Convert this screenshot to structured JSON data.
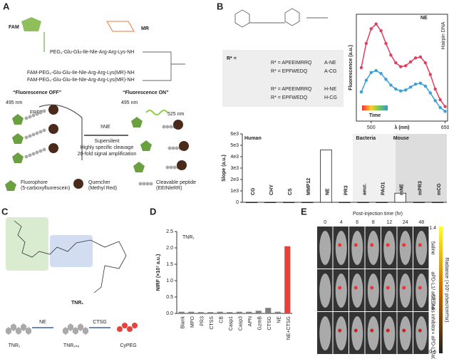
{
  "panels": {
    "a": {
      "label": "A",
      "fam": "FAM",
      "mr": "MR",
      "peptides": [
        "PEG₂-Glu-Glu-Ile-Nle-Arg-Arg-Lys-NH",
        "FAM-PEG₂-Glu-Glu-Ile-Nle-Arg-Arg-Lys(MR)-NH",
        "FAM-PEG₂-Glu-Glu-Ile-Nle-Arg-Arg-Lys(MR)-NH"
      ],
      "off": "“Fluorescence OFF”",
      "on": "“Fluorescence ON”",
      "ex1": "495 nm",
      "fret": "FRET",
      "enzyme": "hNE",
      "ex2": "495 nm",
      "em": "525 nm",
      "notes": [
        "Supersilent",
        "Highly specific cleavage",
        "20-fold signal amplification"
      ],
      "legend": [
        {
          "name": "Fluorophore",
          "detail": "(5-carboxyfluorescein)"
        },
        {
          "name": "Quencher",
          "detail": "(Methyl Red)"
        },
        {
          "name": "Cleavable peptide",
          "detail": "(EEINleRR)"
        }
      ]
    },
    "b": {
      "label": "B",
      "r_label": "R* =",
      "probes": [
        {
          "seq": "R* = APEEIMRRQ",
          "name": "A-NE"
        },
        {
          "seq": "R* = EPFWEDQ",
          "name": "A-CG"
        },
        {
          "seq": "R* = APEEIMRRQ",
          "name": "H-NE"
        },
        {
          "seq": "R* = EPFWEDQ",
          "name": "H-CG"
        }
      ],
      "annotations": [
        "NE",
        "Hairpin DNA"
      ],
      "colorbar": "Time"
    },
    "c": {
      "label": "C",
      "name": "TNR₁",
      "steps": [
        "TNR₁",
        "NE",
        "TNR₁ₙₑ",
        "CTSG",
        "CyPEG"
      ]
    },
    "d": {
      "label": "D"
    },
    "e": {
      "label": "E",
      "title": "Post-injection time (hr)",
      "times": [
        "0",
        "4",
        "6",
        "8",
        "12",
        "24",
        "48"
      ],
      "rows": [
        "Saline",
        "aPD-L1/ aCTLA4",
        "NETosis inhibitor+ aPD-L1/aCTLA4"
      ],
      "colorbar": {
        "title": "Radiance (×10⁵ p/sec/cm²/sr)",
        "max": "1.4",
        "min": "0.6"
      }
    }
  },
  "chart_data": [
    {
      "type": "line",
      "ylabel": "Fluorescence (a.u.)",
      "xlabel": "λ (nm)",
      "x": [
        480,
        490,
        500,
        510,
        520,
        530,
        540,
        550,
        560,
        570,
        580,
        590,
        600,
        610,
        620,
        630,
        640,
        650
      ],
      "xlim": [
        470,
        655
      ],
      "xticks": [
        500,
        650
      ],
      "ylim": [
        0,
        1.1
      ],
      "series": [
        {
          "color": "#e04060",
          "values": [
            0.55,
            0.8,
            0.95,
            1.0,
            0.93,
            0.8,
            0.68,
            0.6,
            0.56,
            0.57,
            0.61,
            0.65,
            0.66,
            0.6,
            0.48,
            0.33,
            0.22,
            0.15
          ]
        },
        {
          "color": "#3aa0d8",
          "values": [
            0.3,
            0.42,
            0.5,
            0.52,
            0.49,
            0.43,
            0.37,
            0.33,
            0.31,
            0.32,
            0.35,
            0.38,
            0.39,
            0.36,
            0.29,
            0.21,
            0.14,
            0.1
          ]
        }
      ]
    },
    {
      "type": "bar",
      "ylabel": "Slope (a.u.)",
      "groups": [
        "Human",
        "Bacteria",
        "Mouse"
      ],
      "categories": [
        "CG",
        "CHY",
        "CS",
        "MMP12",
        "NE",
        "PR3",
        "aeur.",
        "PAO1",
        "mNE",
        "mPR3",
        "mCG"
      ],
      "values": [
        0,
        0,
        0,
        0,
        4600,
        0,
        0,
        0,
        800,
        0,
        0
      ],
      "color": "#ffffff",
      "ylim": [
        0,
        6000
      ],
      "yticks": [
        0,
        {
          "value": 1000,
          "label": "1e3"
        },
        {
          "value": 2000,
          "label": "2e3"
        },
        {
          "value": 3000,
          "label": "3e3"
        },
        {
          "value": 4000,
          "label": "4e3"
        },
        {
          "value": 5000,
          "label": "5e3"
        },
        {
          "value": 6000,
          "label": "6e3"
        }
      ]
    },
    {
      "type": "bar",
      "title": "TNR₁",
      "ylabel": "NIRF (×10⁷ a.u.)",
      "categories": [
        "Blank",
        "MPO",
        "PR3",
        "CTSS",
        "CB",
        "Casp1",
        "Casp3",
        "APN",
        "GzmB",
        "CTSG",
        "NE",
        "NE+CTSG"
      ],
      "values": [
        0.05,
        0.05,
        0.04,
        0.04,
        0.05,
        0.04,
        0.05,
        0.05,
        0.08,
        0.17,
        0.05,
        2.05
      ],
      "colors": [
        "#808080",
        "#808080",
        "#808080",
        "#808080",
        "#808080",
        "#808080",
        "#808080",
        "#808080",
        "#808080",
        "#808080",
        "#808080",
        "#e8413c"
      ],
      "ylim": [
        0,
        2.5
      ],
      "yticks": [
        {
          "value": 0,
          "label": "0.0"
        },
        {
          "value": 0.5,
          "label": "0.5"
        },
        {
          "value": 1,
          "label": "1.0"
        },
        {
          "value": 1.5,
          "label": "1.5"
        },
        {
          "value": 2,
          "label": "2.0"
        },
        {
          "value": 2.5,
          "label": "2.5"
        }
      ]
    }
  ]
}
